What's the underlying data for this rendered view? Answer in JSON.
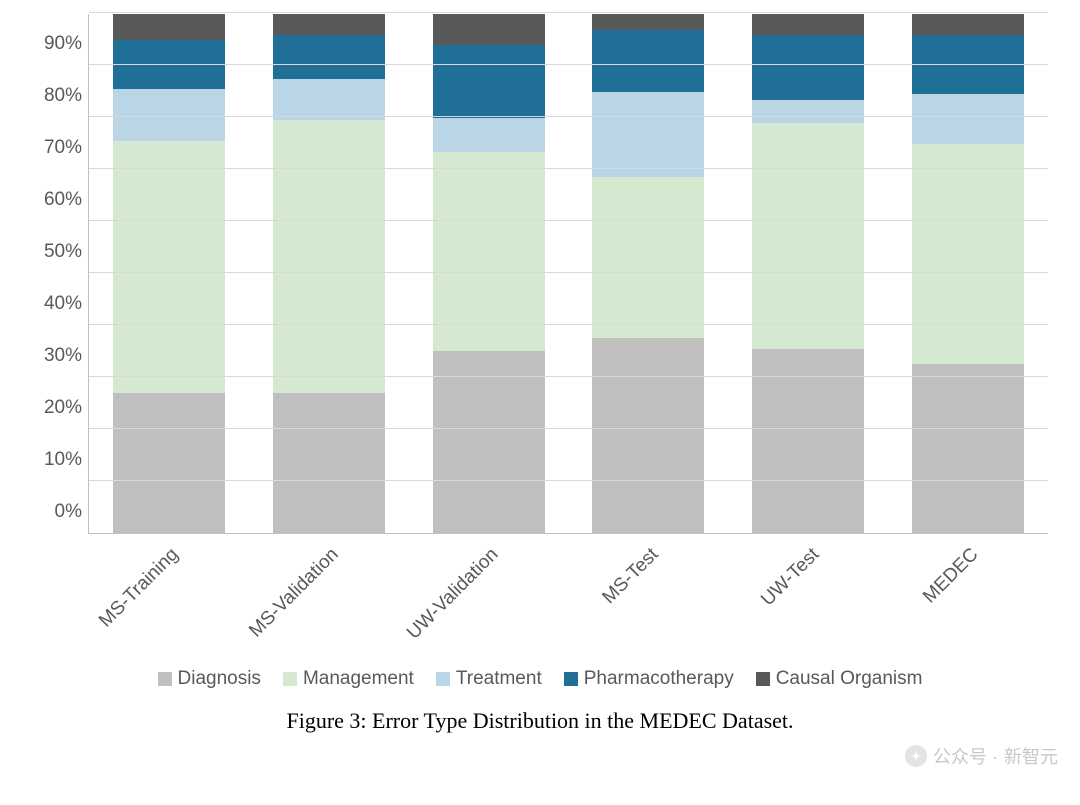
{
  "chart": {
    "type": "stacked-bar-100",
    "ylim": [
      0,
      100
    ],
    "ytick_step": 10,
    "y_suffix": "%",
    "background_color": "#ffffff",
    "grid_color": "#d9d9d9",
    "axis_color": "#bfbfbf",
    "tick_fontsize": 19,
    "tick_color": "#595959",
    "bar_width": 0.7,
    "x_label_rotation": -45,
    "categories": [
      "MS-Training",
      "MS-Validation",
      "UW-Validation",
      "MS-Test",
      "UW-Test",
      "MEDEC"
    ],
    "series": [
      {
        "name": "Diagnosis",
        "color": "#bfbfbf"
      },
      {
        "name": "Management",
        "color": "#d5e8d0"
      },
      {
        "name": "Treatment",
        "color": "#b9d5e6"
      },
      {
        "name": "Pharmacotherapy",
        "color": "#1f6f97"
      },
      {
        "name": "Causal Organism",
        "color": "#595959"
      }
    ],
    "data": [
      [
        27.0,
        48.5,
        10.0,
        9.5,
        5.0
      ],
      [
        27.0,
        52.5,
        8.0,
        8.5,
        4.0
      ],
      [
        35.0,
        38.5,
        6.5,
        14.0,
        6.0
      ],
      [
        37.5,
        31.0,
        16.5,
        12.0,
        3.0
      ],
      [
        35.5,
        43.5,
        4.5,
        12.5,
        4.0
      ],
      [
        32.5,
        42.5,
        9.5,
        11.5,
        4.0
      ]
    ]
  },
  "caption": "Figure 3: Error Type Distribution in the MEDEC Dataset.",
  "watermark": {
    "prefix": "公众号 · ",
    "name": "新智元"
  }
}
